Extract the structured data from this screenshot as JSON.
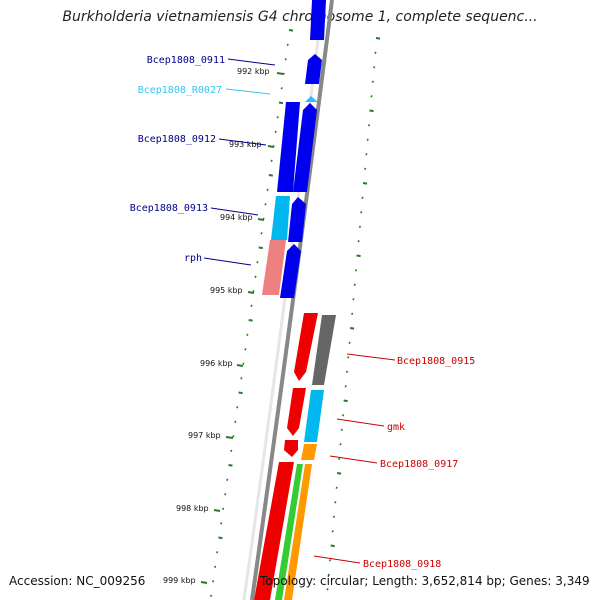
{
  "title": "Burkholderia vietnamiensis G4 chromosome 1, complete sequenc...",
  "footer": {
    "accession": "Accession: NC_009256",
    "topology": "Topology: circular; Length: 3,652,814 bp; Genes: 3,349"
  },
  "colors": {
    "dark_blue": "#0000ee",
    "light_blue": "#00b8ee",
    "salmon": "#ee8080",
    "red": "#ee0000",
    "gray": "#666666",
    "orange": "#ff9900",
    "green": "#33cc33",
    "axis": "#888888",
    "tick": "#2a7a2a",
    "label_left": "#00008b",
    "label_cyan": "#33c6ee",
    "label_right": "#cc0000"
  },
  "kbp_labels": [
    "992 kbp",
    "993 kbp",
    "994 kbp",
    "995 kbp",
    "996 kbp",
    "997 kbp",
    "998 kbp",
    "999 kbp"
  ],
  "gene_labels_left": [
    {
      "text": "Bcep1808_0911",
      "color": "label_left"
    },
    {
      "text": "Bcep1808_R0027",
      "color": "label_cyan"
    },
    {
      "text": "Bcep1808_0912",
      "color": "label_left"
    },
    {
      "text": "Bcep1808_0913",
      "color": "label_left"
    },
    {
      "text": "rph",
      "color": "label_left"
    }
  ],
  "gene_labels_right": [
    {
      "text": "Bcep1808_0915",
      "color": "label_right"
    },
    {
      "text": "gmk",
      "color": "label_right"
    },
    {
      "text": "Bcep1808_0917",
      "color": "label_right"
    },
    {
      "text": "Bcep1808_0918",
      "color": "label_right"
    }
  ]
}
